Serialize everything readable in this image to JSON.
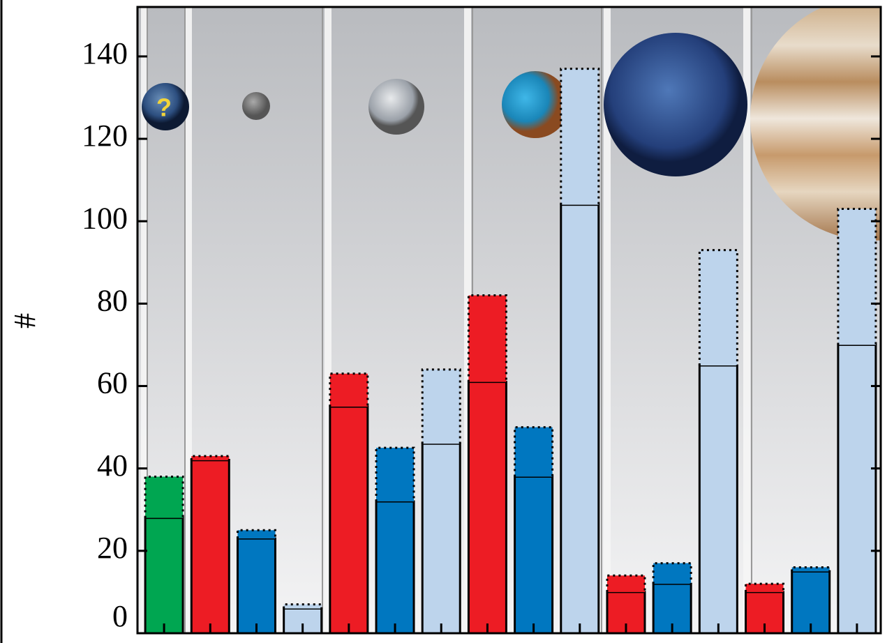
{
  "chart_data": {
    "type": "stacked_bar",
    "y_label": "#",
    "categories": [
      null,
      null,
      null,
      null,
      null,
      null,
      null,
      null,
      null,
      null,
      null,
      null,
      null,
      null,
      null,
      null
    ],
    "colors": [
      "#00a651",
      "#ed1c24",
      "#0077c0",
      "#bdd4ec",
      "#ed1c24",
      "#0077c0",
      "#bdd4ec",
      "#ed1c24",
      "#0077c0",
      "#bdd4ec",
      "#ed1c24",
      "#0077c0",
      "#bdd4ec",
      "#ed1c24",
      "#0077c0",
      "#bdd4ec"
    ],
    "series": [
      {
        "style": "solid",
        "values": [
          28,
          42,
          23,
          6,
          55,
          32,
          46,
          61,
          38,
          104,
          10,
          12,
          65,
          10,
          15,
          70
        ]
      },
      {
        "style": "dotted",
        "values": [
          10,
          1,
          2,
          1,
          8,
          13,
          18,
          21,
          12,
          33,
          4,
          5,
          28,
          2,
          1,
          33
        ]
      }
    ],
    "ylim": [
      0,
      152
    ],
    "yticks": [
      0,
      20,
      40,
      60,
      80,
      100,
      120,
      140
    ]
  }
}
